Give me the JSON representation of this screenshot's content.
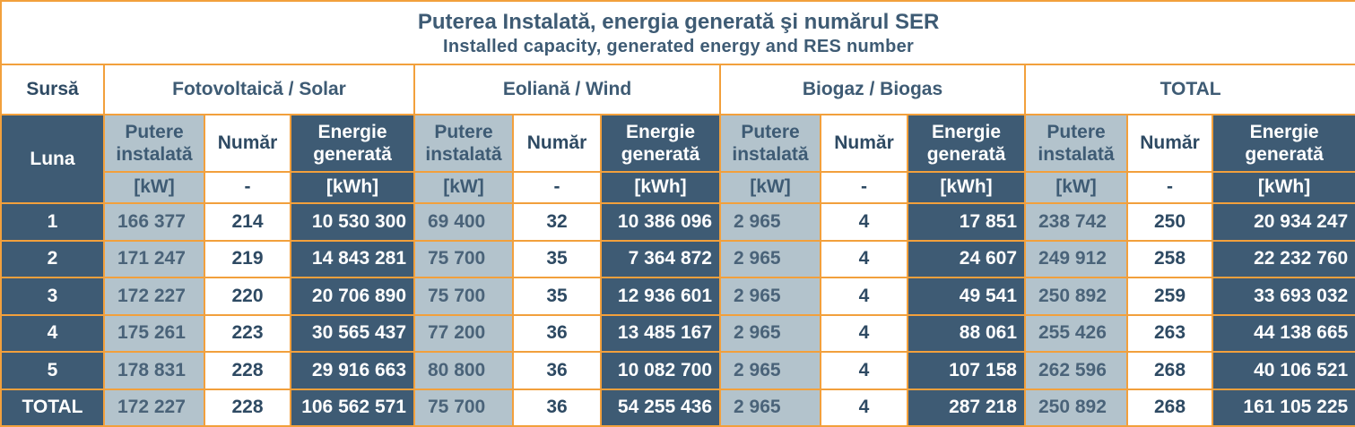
{
  "title": "Puterea Instalată, energia generată şi numărul SER",
  "subtitle": "Installed capacity, generated energy and RES number",
  "header": {
    "source_label": "Sursă",
    "month_label": "Luna",
    "groups": [
      "Fotovoltaică / Solar",
      "Eoliană / Wind",
      "Biogaz / Biogas",
      "TOTAL"
    ],
    "col_cap_line1": "Putere",
    "col_cap_line2": "instalată",
    "col_num": "Număr",
    "col_en_line1": "Energie",
    "col_en_line2": "generată",
    "unit_cap": "[kW]",
    "unit_num": "-",
    "unit_en": "[kWh]"
  },
  "rows": [
    {
      "month": "1",
      "solar": [
        "166 377",
        "214",
        "10 530 300"
      ],
      "wind": [
        "69 400",
        "32",
        "10 386 096"
      ],
      "biogas": [
        "2 965",
        "4",
        "17 851"
      ],
      "total": [
        "238 742",
        "250",
        "20 934 247"
      ]
    },
    {
      "month": "2",
      "solar": [
        "171 247",
        "219",
        "14 843 281"
      ],
      "wind": [
        "75 700",
        "35",
        "7 364 872"
      ],
      "biogas": [
        "2 965",
        "4",
        "24 607"
      ],
      "total": [
        "249 912",
        "258",
        "22 232 760"
      ]
    },
    {
      "month": "3",
      "solar": [
        "172 227",
        "220",
        "20 706 890"
      ],
      "wind": [
        "75 700",
        "35",
        "12 936 601"
      ],
      "biogas": [
        "2 965",
        "4",
        "49 541"
      ],
      "total": [
        "250 892",
        "259",
        "33 693 032"
      ]
    },
    {
      "month": "4",
      "solar": [
        "175 261",
        "223",
        "30 565 437"
      ],
      "wind": [
        "77 200",
        "36",
        "13 485 167"
      ],
      "biogas": [
        "2 965",
        "4",
        "88 061"
      ],
      "total": [
        "255 426",
        "263",
        "44 138 665"
      ]
    },
    {
      "month": "5",
      "solar": [
        "178 831",
        "228",
        "29 916 663"
      ],
      "wind": [
        "80 800",
        "36",
        "10 082 700"
      ],
      "biogas": [
        "2 965",
        "4",
        "107 158"
      ],
      "total": [
        "262 596",
        "268",
        "40 106 521"
      ]
    },
    {
      "month": "TOTAL",
      "solar": [
        "172 227",
        "228",
        "106 562 571"
      ],
      "wind": [
        "75 700",
        "36",
        "54 255 436"
      ],
      "biogas": [
        "2 965",
        "4",
        "287 218"
      ],
      "total": [
        "250 892",
        "268",
        "161 105 225"
      ]
    }
  ],
  "colors": {
    "border": "#F2A03C",
    "dark": "#3E5B74",
    "light": "#B3C3CC",
    "title_text": "#3E5B74"
  }
}
